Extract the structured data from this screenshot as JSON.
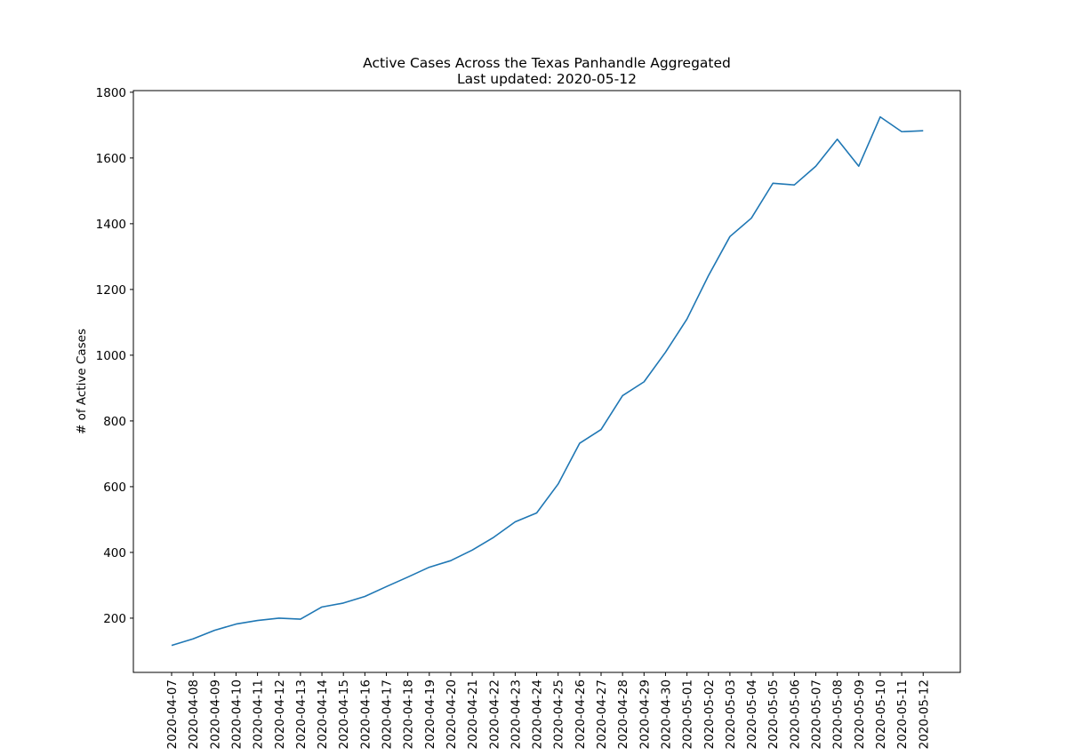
{
  "chart_data": {
    "type": "line",
    "title": "Active Cases Across the Texas Panhandle Aggregated",
    "subtitle": "Last updated: 2020-05-12",
    "xlabel": "",
    "ylabel": "# of Active Cases",
    "ylim": [
      35,
      1805
    ],
    "yticks": [
      200,
      400,
      600,
      800,
      1000,
      1200,
      1400,
      1600,
      1800
    ],
    "grid": false,
    "legend": "none",
    "line_color": "#1f77b4",
    "x": [
      "2020-04-07",
      "2020-04-08",
      "2020-04-09",
      "2020-04-10",
      "2020-04-11",
      "2020-04-12",
      "2020-04-13",
      "2020-04-14",
      "2020-04-15",
      "2020-04-16",
      "2020-04-17",
      "2020-04-18",
      "2020-04-19",
      "2020-04-20",
      "2020-04-21",
      "2020-04-22",
      "2020-04-23",
      "2020-04-24",
      "2020-04-25",
      "2020-04-26",
      "2020-04-27",
      "2020-04-28",
      "2020-04-29",
      "2020-04-30",
      "2020-05-01",
      "2020-05-02",
      "2020-05-03",
      "2020-05-04",
      "2020-05-05",
      "2020-05-06",
      "2020-05-07",
      "2020-05-08",
      "2020-05-09",
      "2020-05-10",
      "2020-05-11",
      "2020-05-12"
    ],
    "series": [
      {
        "values": [
          117,
          137,
          163,
          182,
          193,
          200,
          197,
          234,
          246,
          266,
          296,
          325,
          355,
          375,
          407,
          446,
          493,
          520,
          608,
          732,
          774,
          877,
          919,
          1009,
          1110,
          1242,
          1361,
          1417,
          1523,
          1518,
          1575,
          1657,
          1575,
          1725,
          1680,
          1683
        ]
      }
    ]
  }
}
